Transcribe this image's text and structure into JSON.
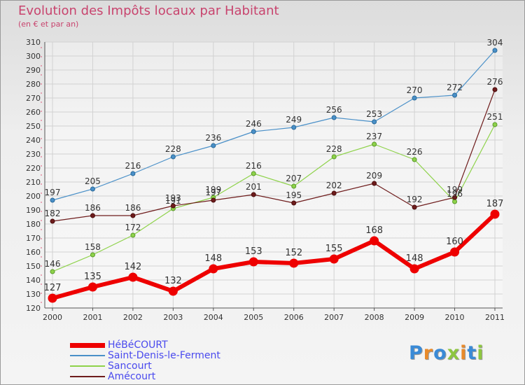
{
  "title": "Evolution des Impôts locaux par Habitant",
  "subtitle": "(en € et par an)",
  "logo_text": "Proxiti",
  "chart_data": {
    "type": "line",
    "title": "Evolution des Impôts locaux par Habitant",
    "ylabel": "(en € et par an)",
    "xlabel": "",
    "x": [
      "2000",
      "2001",
      "2002",
      "2003",
      "2004",
      "2005",
      "2006",
      "2007",
      "2008",
      "2009",
      "2010",
      "2011"
    ],
    "ylim": [
      120,
      310
    ],
    "ytick_step": 10,
    "grid": true,
    "legend_position": "bottom-left",
    "series": [
      {
        "name": "HéBéCOURT",
        "color": "#ee0000",
        "values": [
          127,
          135,
          142,
          132,
          148,
          153,
          152,
          155,
          168,
          148,
          160,
          187
        ]
      },
      {
        "name": "Saint-Denis-le-Ferment",
        "color": "#4a90c8",
        "values": [
          197,
          205,
          216,
          228,
          236,
          246,
          249,
          256,
          253,
          270,
          272,
          304
        ]
      },
      {
        "name": "Sancourt",
        "color": "#8ed24a",
        "values": [
          146,
          158,
          172,
          191,
          199,
          216,
          207,
          228,
          237,
          226,
          196,
          251
        ]
      },
      {
        "name": "Amécourt",
        "color": "#6e1c1c",
        "values": [
          182,
          186,
          186,
          193,
          197,
          201,
          195,
          202,
          209,
          192,
          199,
          276
        ]
      }
    ]
  }
}
